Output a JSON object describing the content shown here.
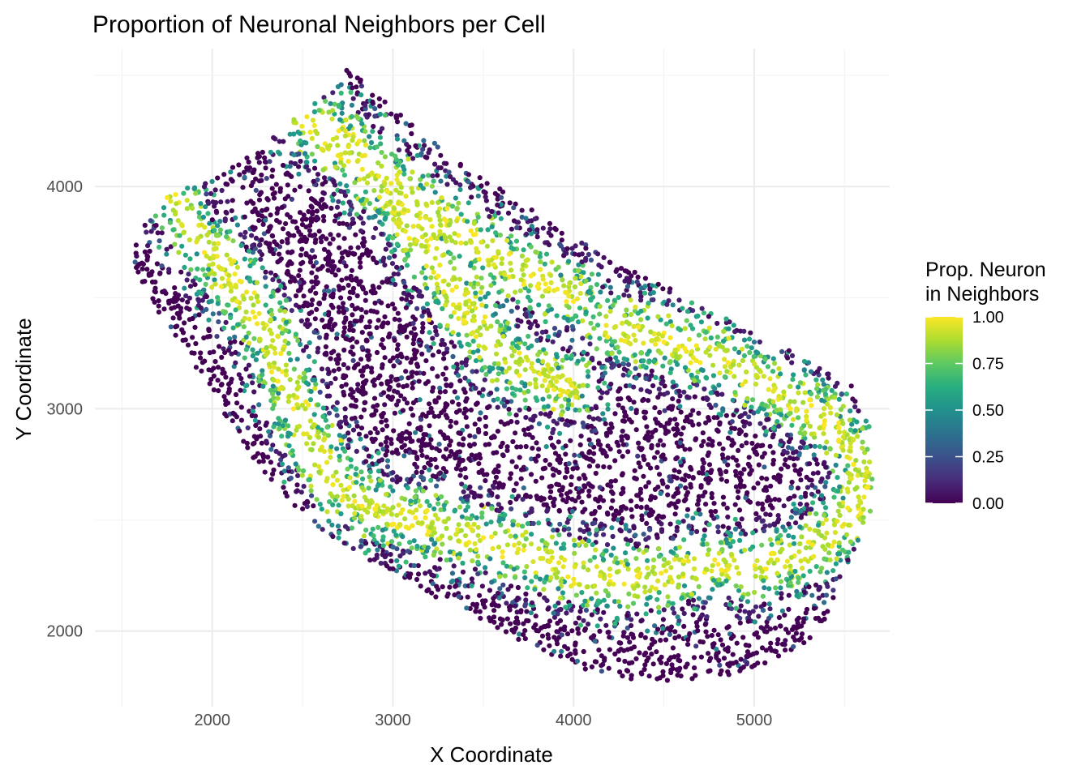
{
  "chart_data": {
    "type": "scatter",
    "title": "Proportion of Neuronal Neighbors per Cell",
    "xlabel": "X Coordinate",
    "ylabel": "Y Coordinate",
    "xlim": [
      1350,
      5750
    ],
    "ylim": [
      1660,
      4620
    ],
    "x_ticks": [
      2000,
      3000,
      4000,
      5000
    ],
    "y_ticks": [
      2000,
      3000,
      4000
    ],
    "x_tick_labels": [
      "2000",
      "3000",
      "4000",
      "5000"
    ],
    "y_tick_labels": [
      "2000",
      "3000",
      "4000"
    ],
    "grid": true,
    "legend": {
      "title_lines": [
        "Prop. Neuron",
        "in Neighbors"
      ],
      "placement": "right",
      "type": "colorbar",
      "range": [
        0,
        1
      ],
      "ticks": [
        0.0,
        0.25,
        0.5,
        0.75,
        1.0
      ],
      "tick_labels": [
        "0.00",
        "0.25",
        "0.50",
        "0.75",
        "1.00"
      ],
      "palette": "viridis",
      "colors": [
        "#440154",
        "#3b528b",
        "#21918c",
        "#5ec962",
        "#fde725"
      ]
    },
    "point_count_approx": 6200,
    "points": [
      {
        "x": 1650,
        "y": 3600,
        "value": 0.0
      },
      {
        "x": 1900,
        "y": 3250,
        "value": 0.0
      },
      {
        "x": 2150,
        "y": 2900,
        "value": 0.0
      },
      {
        "x": 2500,
        "y": 2550,
        "value": 0.0
      },
      {
        "x": 3000,
        "y": 2280,
        "value": 0.0
      },
      {
        "x": 3600,
        "y": 2030,
        "value": 0.0
      },
      {
        "x": 4300,
        "y": 1820,
        "value": 0.0
      },
      {
        "x": 4900,
        "y": 1860,
        "value": 0.0
      },
      {
        "x": 5250,
        "y": 1960,
        "value": 0.0
      },
      {
        "x": 2000,
        "y": 3850,
        "value": 0.0
      },
      {
        "x": 2350,
        "y": 3600,
        "value": 0.0
      },
      {
        "x": 2800,
        "y": 3300,
        "value": 0.0
      },
      {
        "x": 3100,
        "y": 3000,
        "value": 0.0
      },
      {
        "x": 3900,
        "y": 2800,
        "value": 0.0
      },
      {
        "x": 4400,
        "y": 2650,
        "value": 0.0
      },
      {
        "x": 4900,
        "y": 2700,
        "value": 0.0
      },
      {
        "x": 1750,
        "y": 3950,
        "value": 1.0
      },
      {
        "x": 2050,
        "y": 3550,
        "value": 1.0
      },
      {
        "x": 2450,
        "y": 3000,
        "value": 1.0
      },
      {
        "x": 2900,
        "y": 2550,
        "value": 1.0
      },
      {
        "x": 3500,
        "y": 2420,
        "value": 1.0
      },
      {
        "x": 4200,
        "y": 2250,
        "value": 1.0
      },
      {
        "x": 4800,
        "y": 2300,
        "value": 1.0
      },
      {
        "x": 5300,
        "y": 2400,
        "value": 1.0
      },
      {
        "x": 5550,
        "y": 2750,
        "value": 1.0
      },
      {
        "x": 5200,
        "y": 3000,
        "value": 1.0
      },
      {
        "x": 4500,
        "y": 3300,
        "value": 1.0
      },
      {
        "x": 3700,
        "y": 3150,
        "value": 1.0
      },
      {
        "x": 3200,
        "y": 3400,
        "value": 1.0
      },
      {
        "x": 2700,
        "y": 4250,
        "value": 1.0
      },
      {
        "x": 3300,
        "y": 3900,
        "value": 1.0
      },
      {
        "x": 3800,
        "y": 3550,
        "value": 1.0
      },
      {
        "x": 2900,
        "y": 4350,
        "value": 0.3
      },
      {
        "x": 3600,
        "y": 3950,
        "value": 0.25
      },
      {
        "x": 4300,
        "y": 3550,
        "value": 0.3
      },
      {
        "x": 5000,
        "y": 3300,
        "value": 0.4
      },
      {
        "x": 2250,
        "y": 3250,
        "value": 0.5
      },
      {
        "x": 3400,
        "y": 2650,
        "value": 0.6
      },
      {
        "x": 4600,
        "y": 2150,
        "value": 0.6
      },
      {
        "x": 5600,
        "y": 2850,
        "value": 0.8
      }
    ]
  }
}
